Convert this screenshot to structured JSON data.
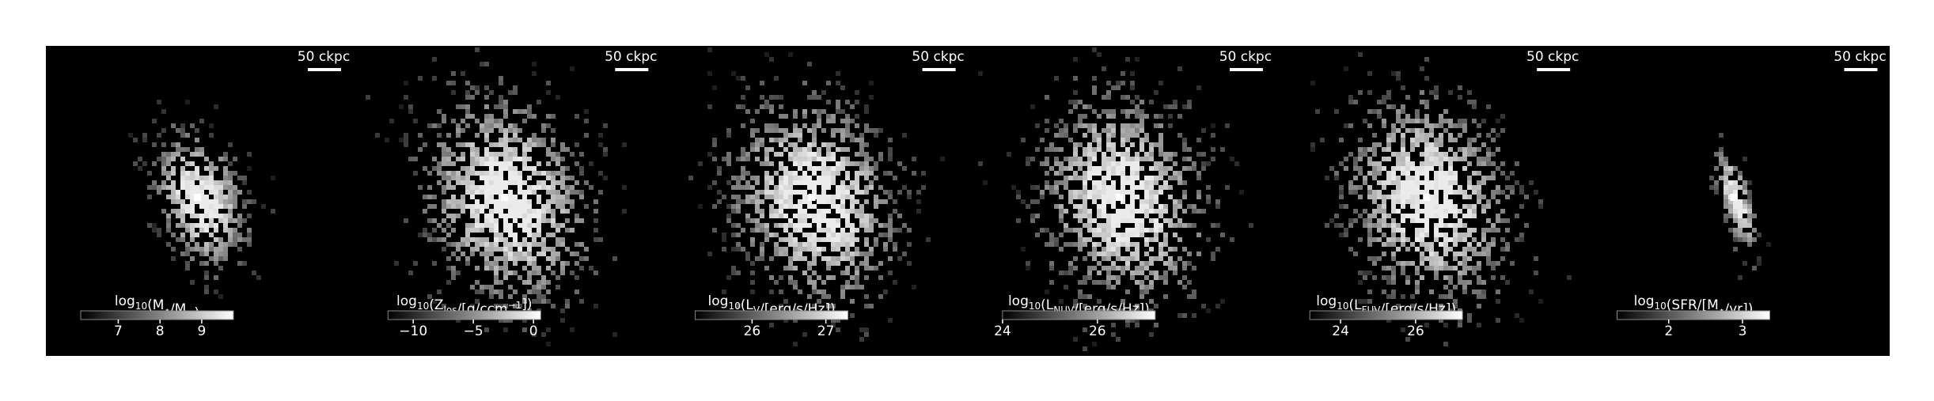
{
  "panels": [
    {
      "scale_label": "50 ckpc",
      "colorbar": {
        "label": [
          "log",
          {
            "sub": "10"
          },
          "(M",
          {
            "sub": "⋆"
          },
          "/M",
          {
            "sub": "⊙"
          },
          ")"
        ],
        "clim": [
          6.1,
          9.76
        ],
        "ticks": [
          7,
          8,
          9
        ]
      }
    },
    {
      "scale_label": "50 ckpc",
      "colorbar": {
        "label": [
          "log",
          {
            "sub": "10"
          },
          "(Z",
          {
            "sub": "los"
          },
          "/[g/ccm",
          {
            "sup": "−1"
          },
          "])"
        ],
        "clim": [
          -12.1,
          0.6
        ],
        "ticks": [
          {
            "value": -10,
            "label": "−10"
          },
          {
            "value": -5,
            "label": "−5"
          },
          0
        ]
      }
    },
    {
      "scale_label": "50 ckpc",
      "colorbar": {
        "label": [
          "log",
          {
            "sub": "10"
          },
          "(L",
          {
            "sub": "V"
          },
          "/[erg/s/Hz])"
        ],
        "clim": [
          25.23,
          27.3
        ],
        "ticks": [
          26,
          27
        ]
      }
    },
    {
      "scale_label": "50 ckpc",
      "colorbar": {
        "label": [
          "log",
          {
            "sub": "10"
          },
          "(L",
          {
            "sub": "NUV"
          },
          "/[erg/s/Hz])"
        ],
        "clim": [
          24.0,
          27.22
        ],
        "ticks": [
          24,
          26
        ]
      }
    },
    {
      "scale_label": "50 ckpc",
      "colorbar": {
        "label": [
          "log",
          {
            "sub": "10"
          },
          "(L",
          {
            "sub": "FUV"
          },
          "/[erg/s/Hz])"
        ],
        "clim": [
          23.18,
          27.25
        ],
        "ticks": [
          24,
          26
        ]
      }
    },
    {
      "scale_label": "50 ckpc",
      "colorbar": {
        "label": [
          "log",
          {
            "sub": "10"
          },
          "(SFR/[M",
          {
            "sub": "⋆"
          },
          "/yr])"
        ],
        "clim": [
          1.3,
          3.37
        ],
        "ticks": [
          2,
          3
        ]
      }
    }
  ]
}
